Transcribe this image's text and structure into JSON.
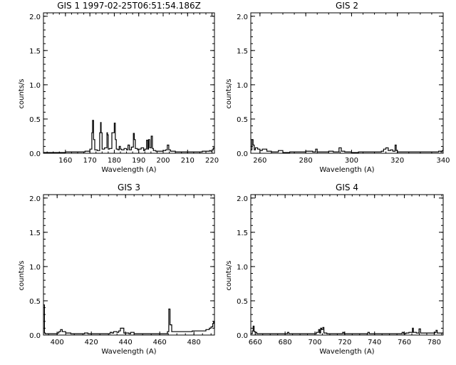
{
  "chart_data": [
    {
      "type": "line",
      "title": "GIS 1 1997-02-25T06:51:54.186Z",
      "xlabel": "Wavelength (A)",
      "ylabel": "counts/s",
      "xlim": [
        151,
        221
      ],
      "ylim": [
        0,
        2.05
      ],
      "xticks": [
        160,
        170,
        180,
        190,
        200,
        210,
        220
      ],
      "xtick_labels": [
        "160",
        "170",
        "180",
        "190",
        "200",
        "210",
        "220"
      ],
      "yticks": [
        0,
        0.5,
        1.0,
        1.5,
        2.0
      ],
      "ytick_labels": [
        "0.0",
        "0.5",
        "1.0",
        "1.5",
        "2.0"
      ],
      "series": [
        {
          "x": [
            151,
            155,
            160,
            165,
            168,
            170,
            170.8,
            171.1,
            171.5,
            172,
            173,
            174,
            174.4,
            174.6,
            175,
            176,
            177,
            177.2,
            177.5,
            178,
            179,
            180,
            180.4,
            180.8,
            181.5,
            182,
            182.5,
            183,
            184,
            185,
            185.6,
            186.2,
            187,
            187.8,
            188.2,
            188.6,
            189.5,
            190,
            191,
            192,
            192.5,
            193.2,
            193.7,
            194,
            194.5,
            195.1,
            195.6,
            196,
            197,
            198,
            199,
            200,
            201,
            201.7,
            202.3,
            203,
            205,
            208,
            211,
            214,
            216,
            218,
            219,
            219.5,
            220,
            220.5,
            221
          ],
          "y": [
            0.01,
            0.01,
            0.02,
            0.02,
            0.03,
            0.06,
            0.3,
            0.48,
            0.2,
            0.05,
            0.04,
            0.3,
            0.45,
            0.3,
            0.06,
            0.08,
            0.3,
            0.27,
            0.06,
            0.07,
            0.3,
            0.44,
            0.2,
            0.06,
            0.05,
            0.1,
            0.06,
            0.05,
            0.07,
            0.05,
            0.12,
            0.05,
            0.09,
            0.29,
            0.2,
            0.07,
            0.05,
            0.06,
            0.08,
            0.04,
            0.06,
            0.19,
            0.06,
            0.2,
            0.08,
            0.25,
            0.07,
            0.04,
            0.03,
            0.03,
            0.03,
            0.04,
            0.05,
            0.12,
            0.05,
            0.03,
            0.02,
            0.02,
            0.02,
            0.02,
            0.03,
            0.03,
            0.04,
            0.03,
            0.05,
            0.08,
            0.06
          ]
        }
      ]
    },
    {
      "type": "line",
      "title": "GIS 2",
      "xlabel": "Wavelength (A)",
      "ylabel": "counts/s",
      "xlim": [
        256,
        340
      ],
      "ylim": [
        0,
        2.05
      ],
      "xticks": [
        260,
        280,
        300,
        320,
        340
      ],
      "xtick_labels": [
        "260",
        "280",
        "300",
        "320",
        "340"
      ],
      "yticks": [
        0,
        0.5,
        1.0,
        1.5,
        2.0
      ],
      "ytick_labels": [
        "0.0",
        "0.5",
        "1.0",
        "1.5",
        "2.0"
      ],
      "series": [
        {
          "x": [
            256,
            256.5,
            257,
            257.5,
            258,
            259,
            260,
            261,
            263,
            265,
            267,
            268,
            270,
            273,
            275,
            277,
            280,
            283,
            284.3,
            285,
            287,
            290,
            292,
            294.5,
            295.5,
            297,
            300,
            303,
            306,
            309,
            311,
            313,
            314,
            315,
            316,
            317,
            318,
            319,
            319.5,
            320,
            322,
            325,
            328,
            330,
            333,
            336,
            338,
            339,
            339.5,
            340
          ],
          "y": [
            0.05,
            0.2,
            0.12,
            0.05,
            0.08,
            0.06,
            0.04,
            0.06,
            0.03,
            0.02,
            0.02,
            0.04,
            0.01,
            0.02,
            0.02,
            0.02,
            0.03,
            0.02,
            0.06,
            0.02,
            0.02,
            0.03,
            0.02,
            0.08,
            0.03,
            0.02,
            0.01,
            0.02,
            0.02,
            0.02,
            0.02,
            0.03,
            0.06,
            0.08,
            0.04,
            0.05,
            0.03,
            0.12,
            0.04,
            0.02,
            0.02,
            0.02,
            0.02,
            0.02,
            0.02,
            0.02,
            0.03,
            0.02,
            0.04,
            0.09
          ]
        }
      ]
    },
    {
      "type": "line",
      "title": "GIS 3",
      "xlabel": "Wavelength (A)",
      "ylabel": "counts/s",
      "xlim": [
        392,
        492
      ],
      "ylim": [
        0,
        2.05
      ],
      "xticks": [
        400,
        420,
        440,
        460,
        480
      ],
      "xtick_labels": [
        "400",
        "420",
        "440",
        "460",
        "480"
      ],
      "yticks": [
        0,
        0.5,
        1.0,
        1.5,
        2.0
      ],
      "ytick_labels": [
        "0.0",
        "0.5",
        "1.0",
        "1.5",
        "2.0"
      ],
      "series": [
        {
          "x": [
            392,
            392.3,
            392.6,
            393,
            394,
            396,
            398,
            400,
            401,
            402,
            403,
            405,
            408,
            411,
            414,
            416,
            418,
            421,
            424,
            427,
            430,
            431,
            432,
            433,
            435,
            436,
            437,
            439,
            442,
            443,
            445,
            448,
            452,
            455,
            458,
            461,
            463,
            464.5,
            465.3,
            466,
            467,
            468,
            470,
            473,
            476,
            479,
            482,
            485,
            487,
            488,
            489,
            490,
            491,
            491.5,
            492
          ],
          "y": [
            0.44,
            0.44,
            0.03,
            0.02,
            0.02,
            0.02,
            0.02,
            0.03,
            0.05,
            0.08,
            0.05,
            0.03,
            0.02,
            0.02,
            0.02,
            0.03,
            0.02,
            0.02,
            0.02,
            0.02,
            0.02,
            0.04,
            0.03,
            0.05,
            0.04,
            0.06,
            0.1,
            0.03,
            0.02,
            0.04,
            0.02,
            0.02,
            0.02,
            0.02,
            0.02,
            0.02,
            0.02,
            0.05,
            0.38,
            0.15,
            0.05,
            0.05,
            0.05,
            0.05,
            0.05,
            0.06,
            0.06,
            0.06,
            0.08,
            0.08,
            0.1,
            0.12,
            0.17,
            0.2,
            0.1
          ]
        }
      ]
    },
    {
      "type": "line",
      "title": "GIS 4",
      "xlabel": "Wavelength (A)",
      "ylabel": "counts/s",
      "xlim": [
        657,
        786
      ],
      "ylim": [
        0,
        2.05
      ],
      "xticks": [
        660,
        680,
        700,
        720,
        740,
        760,
        780
      ],
      "xtick_labels": [
        "660",
        "680",
        "700",
        "720",
        "740",
        "760",
        "780"
      ],
      "yticks": [
        0,
        0.5,
        1.0,
        1.5,
        2.0
      ],
      "ytick_labels": [
        "0.0",
        "0.5",
        "1.0",
        "1.5",
        "2.0"
      ],
      "series": [
        {
          "x": [
            657,
            658,
            658.6,
            659.2,
            660,
            661,
            663,
            665,
            668,
            671,
            674,
            677,
            680,
            681.6,
            682.5,
            684,
            687,
            690,
            693,
            696,
            699,
            701,
            702.5,
            703.2,
            703.8,
            704.5,
            705.3,
            706,
            708,
            711,
            714,
            717,
            718.6,
            719.5,
            721,
            724,
            727,
            730,
            733,
            735.5,
            736.5,
            738,
            741,
            744,
            747,
            750,
            753,
            756,
            758.5,
            759.5,
            761,
            763,
            764.5,
            765.4,
            766,
            768,
            769.8,
            770.8,
            772,
            775,
            778,
            780.5,
            781.2,
            782,
            784,
            786
          ],
          "y": [
            0.02,
            0.06,
            0.13,
            0.05,
            0.04,
            0.02,
            0.02,
            0.02,
            0.02,
            0.02,
            0.02,
            0.02,
            0.02,
            0.04,
            0.02,
            0.02,
            0.02,
            0.02,
            0.02,
            0.02,
            0.02,
            0.04,
            0.08,
            0.03,
            0.1,
            0.08,
            0.11,
            0.03,
            0.02,
            0.02,
            0.02,
            0.02,
            0.04,
            0.02,
            0.02,
            0.02,
            0.02,
            0.02,
            0.02,
            0.04,
            0.02,
            0.02,
            0.02,
            0.02,
            0.02,
            0.02,
            0.02,
            0.02,
            0.04,
            0.02,
            0.03,
            0.04,
            0.04,
            0.1,
            0.04,
            0.03,
            0.09,
            0.03,
            0.03,
            0.03,
            0.03,
            0.04,
            0.07,
            0.03,
            0.03,
            0.03
          ]
        }
      ]
    }
  ]
}
